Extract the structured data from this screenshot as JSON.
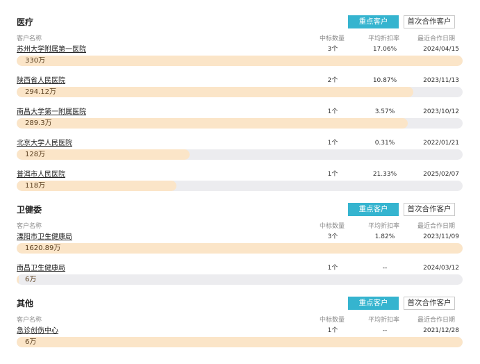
{
  "headers": {
    "name": "客户名称",
    "count": "中标数量",
    "rate": "平均折扣率",
    "date": "最近合作日期"
  },
  "buttons": {
    "key_customers": "重点客户",
    "first_customers": "首次合作客户"
  },
  "sections": [
    {
      "title": "医疗",
      "rows": [
        {
          "name": "苏州大学附属第一医院",
          "count": "3个",
          "rate": "17.06%",
          "date": "2024/04/15",
          "amount": "330万",
          "fill_percent": 100
        },
        {
          "name": "陕西省人民医院",
          "count": "2个",
          "rate": "10.87%",
          "date": "2023/11/13",
          "amount": "294.12万",
          "fill_percent": 89
        },
        {
          "name": "南昌大学第一附属医院",
          "count": "1个",
          "rate": "3.57%",
          "date": "2023/10/12",
          "amount": "289.3万",
          "fill_percent": 87.7
        },
        {
          "name": "北京大学人民医院",
          "count": "1个",
          "rate": "0.31%",
          "date": "2022/01/21",
          "amount": "128万",
          "fill_percent": 38.8
        },
        {
          "name": "普洱市人民医院",
          "count": "1个",
          "rate": "21.33%",
          "date": "2025/02/07",
          "amount": "118万",
          "fill_percent": 35.8
        }
      ]
    },
    {
      "title": "卫健委",
      "rows": [
        {
          "name": "溧阳市卫生健康局",
          "count": "3个",
          "rate": "1.82%",
          "date": "2023/11/09",
          "amount": "1620.89万",
          "fill_percent": 100
        },
        {
          "name": "南昌卫生健康局",
          "count": "1个",
          "rate": "--",
          "date": "2024/03/12",
          "amount": "6万",
          "fill_percent": 0.4
        }
      ]
    },
    {
      "title": "其他",
      "rows": [
        {
          "name": "急诊创伤中心",
          "count": "1个",
          "rate": "--",
          "date": "2021/12/28",
          "amount": "6万",
          "fill_percent": 100
        }
      ]
    }
  ]
}
